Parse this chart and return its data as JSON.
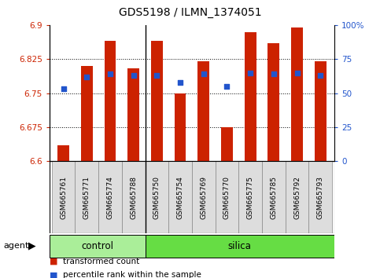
{
  "title": "GDS5198 / ILMN_1374051",
  "samples": [
    "GSM665761",
    "GSM665771",
    "GSM665774",
    "GSM665788",
    "GSM665750",
    "GSM665754",
    "GSM665769",
    "GSM665770",
    "GSM665775",
    "GSM665785",
    "GSM665792",
    "GSM665793"
  ],
  "red_values": [
    6.635,
    6.81,
    6.865,
    6.805,
    6.865,
    6.75,
    6.82,
    6.675,
    6.885,
    6.86,
    6.895,
    6.82
  ],
  "blue_values": [
    53,
    62,
    64,
    63,
    63,
    58,
    64,
    55,
    65,
    64,
    65,
    63
  ],
  "ymin": 6.6,
  "ymax": 6.9,
  "yticks": [
    6.6,
    6.675,
    6.75,
    6.825,
    6.9
  ],
  "ytick_labels": [
    "6.6",
    "6.675",
    "6.75",
    "6.825",
    "6.9"
  ],
  "right_yticks": [
    0,
    25,
    50,
    75,
    100
  ],
  "right_ytick_labels": [
    "0",
    "25",
    "50",
    "75",
    "100%"
  ],
  "bar_color": "#cc2200",
  "dot_color": "#2255cc",
  "bar_width": 0.5,
  "control_samples": 4,
  "control_label": "control",
  "silica_label": "silica",
  "agent_label": "agent",
  "legend_bar_label": "transformed count",
  "legend_dot_label": "percentile rank within the sample",
  "control_color": "#aaee99",
  "silica_color": "#66dd44",
  "xlabel_color": "#cc2200",
  "ylabel_right_color": "#2255cc",
  "label_bg_color": "#dddddd",
  "title_fontsize": 10,
  "tick_fontsize": 7.5,
  "sample_fontsize": 6.5
}
